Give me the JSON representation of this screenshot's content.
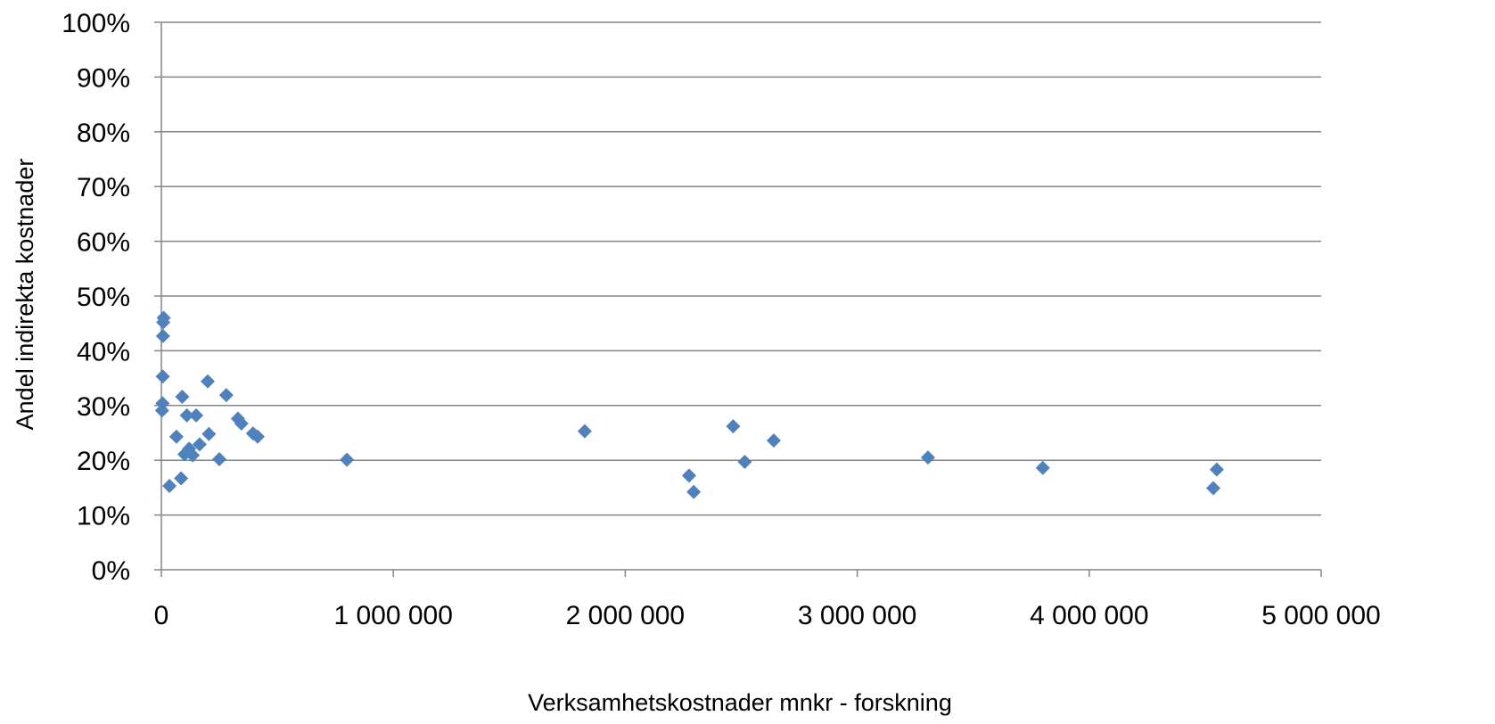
{
  "chart_data": {
    "type": "scatter",
    "title": "",
    "xlabel": "Verksamhetskostnader mnkr - forskning",
    "ylabel": "Andel indirekta kostnader",
    "xlim": [
      0,
      5000000
    ],
    "ylim": [
      0,
      1
    ],
    "x_ticks": [
      0,
      1000000,
      2000000,
      3000000,
      4000000,
      5000000
    ],
    "x_tick_labels": [
      "0",
      "1 000 000",
      "2 000 000",
      "3 000 000",
      "4 000 000",
      "5 000 000"
    ],
    "y_ticks": [
      0,
      0.1,
      0.2,
      0.3,
      0.4,
      0.5,
      0.6,
      0.7,
      0.8,
      0.9,
      1.0
    ],
    "y_tick_labels": [
      "0%",
      "10%",
      "20%",
      "30%",
      "40%",
      "50%",
      "60%",
      "70%",
      "80%",
      "90%",
      "100%"
    ],
    "grid": "horizontal",
    "legend": "none",
    "marker": "diamond",
    "marker_color": "#4F81BD",
    "points": [
      {
        "x": 10000,
        "y": 0.46
      },
      {
        "x": 8000,
        "y": 0.452
      },
      {
        "x": 7000,
        "y": 0.427
      },
      {
        "x": 6000,
        "y": 0.353
      },
      {
        "x": 5000,
        "y": 0.304
      },
      {
        "x": 3000,
        "y": 0.291
      },
      {
        "x": 35000,
        "y": 0.153
      },
      {
        "x": 65000,
        "y": 0.243
      },
      {
        "x": 85000,
        "y": 0.167
      },
      {
        "x": 90000,
        "y": 0.316
      },
      {
        "x": 100000,
        "y": 0.211
      },
      {
        "x": 110000,
        "y": 0.282
      },
      {
        "x": 120000,
        "y": 0.221
      },
      {
        "x": 135000,
        "y": 0.209
      },
      {
        "x": 150000,
        "y": 0.282
      },
      {
        "x": 165000,
        "y": 0.229
      },
      {
        "x": 200000,
        "y": 0.344
      },
      {
        "x": 205000,
        "y": 0.248
      },
      {
        "x": 250000,
        "y": 0.202
      },
      {
        "x": 280000,
        "y": 0.319
      },
      {
        "x": 330000,
        "y": 0.276
      },
      {
        "x": 345000,
        "y": 0.267
      },
      {
        "x": 395000,
        "y": 0.249
      },
      {
        "x": 415000,
        "y": 0.243
      },
      {
        "x": 800000,
        "y": 0.201
      },
      {
        "x": 1825000,
        "y": 0.253
      },
      {
        "x": 2275000,
        "y": 0.172
      },
      {
        "x": 2295000,
        "y": 0.142
      },
      {
        "x": 2465000,
        "y": 0.262
      },
      {
        "x": 2515000,
        "y": 0.197
      },
      {
        "x": 2640000,
        "y": 0.236
      },
      {
        "x": 3305000,
        "y": 0.205
      },
      {
        "x": 3800000,
        "y": 0.186
      },
      {
        "x": 4535000,
        "y": 0.149
      },
      {
        "x": 4550000,
        "y": 0.183
      }
    ]
  }
}
